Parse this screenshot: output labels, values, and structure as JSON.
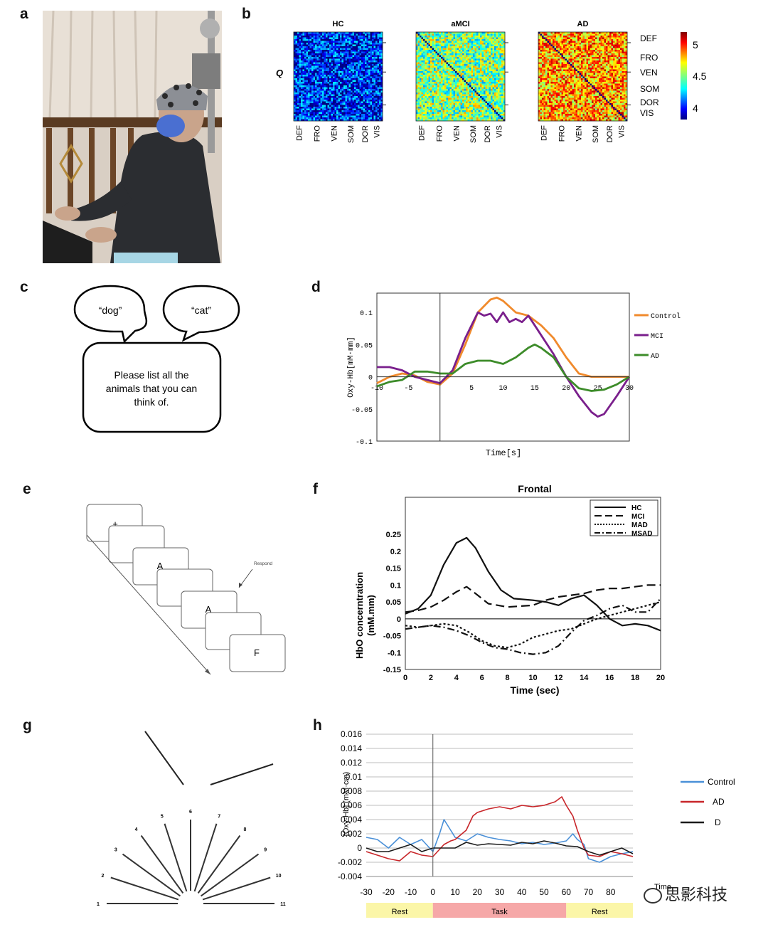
{
  "panels": {
    "a": "a",
    "b": "b",
    "c": "c",
    "d": "d",
    "e": "e",
    "f": "f",
    "g": "g",
    "h": "h"
  },
  "panel_b": {
    "row_label": "Q",
    "matrices": [
      "HC",
      "aMCI",
      "AD"
    ],
    "networks": [
      "DEF",
      "FRO",
      "VEN",
      "SOM",
      "DOR",
      "VIS"
    ],
    "colorbar_ticks": [
      "5",
      "4.5",
      "4"
    ]
  },
  "panel_c": {
    "bubble_left": "“dog”",
    "bubble_right": "“cat”",
    "prompt_lines": [
      "Please list all the",
      "animals that you can",
      "think of."
    ]
  },
  "panel_e": {
    "cards": [
      "+",
      "",
      "A",
      "",
      "A",
      "",
      "F"
    ],
    "respond_label": "Respond"
  },
  "panel_g": {
    "line_numbers": [
      "1",
      "2",
      "3",
      "4",
      "5",
      "6",
      "7",
      "8",
      "9",
      "10",
      "11"
    ]
  },
  "panel_h_timeline": {
    "segments": [
      "Rest",
      "Task",
      "Rest"
    ],
    "colors": {
      "rest": "#fbf6a8",
      "task": "#f6a8a8"
    }
  },
  "watermark": "思影科技",
  "chart_data": [
    {
      "panel": "d",
      "type": "line",
      "title": "",
      "xlabel": "Time[s]",
      "ylabel": "Oxy-Hb[mM·mm]",
      "xlim": [
        -10,
        30
      ],
      "ylim": [
        -0.1,
        0.13
      ],
      "xticks": [
        "-10",
        "-5",
        "5",
        "10",
        "15",
        "20",
        "25",
        "30"
      ],
      "yticks": [
        "0.1",
        "0.05",
        "0",
        "-0.05",
        "-0.1"
      ],
      "legend_position": "right",
      "series": [
        {
          "name": "Control",
          "color": "#f08a2c",
          "x": [
            -10,
            -8,
            -6,
            -4,
            -2,
            0,
            2,
            4,
            6,
            8,
            9,
            10,
            12,
            14,
            16,
            18,
            20,
            22,
            24,
            26,
            28,
            30
          ],
          "y": [
            -0.01,
            0.0,
            0.005,
            0.002,
            -0.008,
            -0.012,
            0.005,
            0.05,
            0.1,
            0.12,
            0.123,
            0.118,
            0.1,
            0.095,
            0.08,
            0.06,
            0.03,
            0.005,
            0.0,
            0.0,
            0.0,
            0.0
          ]
        },
        {
          "name": "MCI",
          "color": "#7a1f8c",
          "x": [
            -10,
            -8,
            -6,
            -4,
            -2,
            0,
            2,
            4,
            6,
            7,
            8,
            9,
            10,
            11,
            12,
            13,
            14,
            15,
            16,
            18,
            20,
            22,
            24,
            25,
            26,
            28,
            30
          ],
          "y": [
            0.015,
            0.015,
            0.01,
            0.0,
            -0.005,
            -0.01,
            0.01,
            0.06,
            0.1,
            0.095,
            0.098,
            0.085,
            0.1,
            0.085,
            0.09,
            0.085,
            0.095,
            0.08,
            0.065,
            0.035,
            0.0,
            -0.03,
            -0.055,
            -0.062,
            -0.058,
            -0.03,
            0.0
          ]
        },
        {
          "name": "AD",
          "color": "#3d8c2a",
          "x": [
            -10,
            -8,
            -6,
            -4,
            -2,
            0,
            2,
            4,
            6,
            8,
            10,
            12,
            14,
            15,
            16,
            18,
            20,
            22,
            24,
            26,
            28,
            30
          ],
          "y": [
            -0.015,
            -0.008,
            -0.005,
            0.008,
            0.008,
            0.005,
            0.005,
            0.02,
            0.025,
            0.025,
            0.02,
            0.03,
            0.045,
            0.05,
            0.045,
            0.03,
            0.0,
            -0.018,
            -0.022,
            -0.02,
            -0.012,
            0.0
          ]
        }
      ]
    },
    {
      "panel": "f",
      "type": "line",
      "title": "Frontal",
      "xlabel": "Time (sec)",
      "ylabel": "HbO concerntration (mM.mm)",
      "xlim": [
        0,
        20
      ],
      "ylim": [
        -0.15,
        0.36
      ],
      "xticks": [
        "0",
        "2",
        "4",
        "6",
        "8",
        "10",
        "12",
        "14",
        "16",
        "18",
        "20"
      ],
      "yticks": [
        "0.25",
        "0.2",
        "0.15",
        "0.1",
        "0.05",
        "0",
        "-0.05",
        "-0.1",
        "-0.15"
      ],
      "legend_position": "top-right",
      "series": [
        {
          "name": "HC",
          "style": "solid",
          "x": [
            0,
            1,
            2,
            3,
            4,
            4.8,
            5.5,
            6.5,
            7.5,
            8.5,
            10,
            11,
            12,
            13,
            14,
            15,
            16,
            17,
            18,
            19,
            20
          ],
          "y": [
            0.015,
            0.03,
            0.07,
            0.16,
            0.225,
            0.24,
            0.21,
            0.14,
            0.085,
            0.06,
            0.055,
            0.05,
            0.04,
            0.06,
            0.07,
            0.04,
            0.0,
            -0.02,
            -0.015,
            -0.02,
            -0.035
          ]
        },
        {
          "name": "MCI",
          "style": "dashed",
          "x": [
            0,
            1,
            2,
            3,
            4,
            4.8,
            5.5,
            6.5,
            8,
            10,
            11,
            12,
            13,
            14,
            15,
            16,
            17,
            18,
            19,
            20
          ],
          "y": [
            0.02,
            0.025,
            0.035,
            0.055,
            0.08,
            0.095,
            0.075,
            0.045,
            0.035,
            0.04,
            0.055,
            0.065,
            0.07,
            0.075,
            0.085,
            0.09,
            0.09,
            0.095,
            0.1,
            0.1
          ]
        },
        {
          "name": "MAD",
          "style": "dotted",
          "x": [
            0,
            1,
            2,
            3,
            4,
            5,
            6,
            7,
            8,
            9,
            10,
            11,
            12,
            13,
            14,
            15,
            16,
            17,
            18,
            19,
            20
          ],
          "y": [
            -0.02,
            -0.025,
            -0.02,
            -0.015,
            -0.02,
            -0.04,
            -0.065,
            -0.08,
            -0.085,
            -0.075,
            -0.055,
            -0.045,
            -0.035,
            -0.03,
            -0.015,
            0.0,
            0.01,
            0.02,
            0.03,
            0.04,
            0.05
          ]
        },
        {
          "name": "MSAD",
          "style": "dashdot",
          "x": [
            0,
            1,
            2,
            3,
            4,
            5,
            6,
            7,
            8,
            9,
            10,
            11,
            12,
            13,
            14,
            15,
            16,
            17,
            18,
            19,
            20
          ],
          "y": [
            -0.03,
            -0.025,
            -0.02,
            -0.025,
            -0.035,
            -0.05,
            -0.07,
            -0.085,
            -0.09,
            -0.1,
            -0.105,
            -0.1,
            -0.08,
            -0.04,
            -0.005,
            0.01,
            0.03,
            0.04,
            0.02,
            0.02,
            0.06
          ]
        }
      ]
    },
    {
      "panel": "h",
      "type": "line",
      "title": "",
      "xlabel": "Time",
      "ylabel": "[Oxy-Hb] (mM·cm)",
      "xlim": [
        -30,
        90
      ],
      "ylim": [
        -0.004,
        0.016
      ],
      "xticks": [
        "-30",
        "-20",
        "-10",
        "0",
        "10",
        "20",
        "30",
        "40",
        "50",
        "60",
        "70",
        "80"
      ],
      "yticks": [
        "0.016",
        "0.014",
        "0.012",
        "0.01",
        "0.008",
        "0.006",
        "0.004",
        "0.002",
        "0",
        "-0.002",
        "-0.004"
      ],
      "legend_position": "right",
      "grid": true,
      "series": [
        {
          "name": "Control",
          "color": "#4a90d8",
          "x": [
            -30,
            -25,
            -20,
            -15,
            -10,
            -5,
            0,
            3,
            5,
            8,
            10,
            15,
            20,
            25,
            30,
            35,
            40,
            45,
            50,
            55,
            60,
            63,
            65,
            68,
            70,
            75,
            80,
            85,
            90
          ],
          "y": [
            0.0015,
            0.0012,
            0.0,
            0.0015,
            0.0005,
            0.0012,
            -0.0005,
            0.002,
            0.004,
            0.0025,
            0.0015,
            0.001,
            0.002,
            0.0015,
            0.0012,
            0.001,
            0.0006,
            0.0008,
            0.0005,
            0.0007,
            0.001,
            0.002,
            0.0012,
            0.0005,
            -0.0015,
            -0.002,
            -0.0012,
            -0.0008,
            -0.0005
          ]
        },
        {
          "name": "AD",
          "color": "#c8262a",
          "x": [
            -30,
            -25,
            -20,
            -15,
            -10,
            -5,
            0,
            5,
            8,
            10,
            15,
            18,
            20,
            25,
            30,
            35,
            40,
            45,
            50,
            55,
            58,
            60,
            63,
            65,
            68,
            70,
            75,
            80,
            85,
            90
          ],
          "y": [
            -0.0005,
            -0.001,
            -0.0015,
            -0.0018,
            -0.0005,
            -0.001,
            -0.0012,
            0.0005,
            0.001,
            0.0012,
            0.0025,
            0.0045,
            0.005,
            0.0055,
            0.0058,
            0.0055,
            0.006,
            0.0058,
            0.006,
            0.0065,
            0.0072,
            0.006,
            0.0045,
            0.0025,
            0.0,
            -0.001,
            -0.0012,
            -0.0005,
            -0.0008,
            -0.0012
          ]
        },
        {
          "name": "D",
          "color": "#1a1a1a",
          "x": [
            -30,
            -25,
            -20,
            -15,
            -10,
            -5,
            0,
            5,
            10,
            15,
            20,
            25,
            30,
            35,
            40,
            45,
            50,
            55,
            60,
            65,
            70,
            75,
            80,
            85,
            90
          ],
          "y": [
            0.0,
            -0.0005,
            -0.0005,
            0.0,
            0.0005,
            -0.0005,
            0.0,
            0.0,
            0.0,
            0.0008,
            0.0004,
            0.0006,
            0.0005,
            0.0004,
            0.0008,
            0.0006,
            0.001,
            0.0007,
            0.0003,
            0.0002,
            -0.0005,
            -0.001,
            -0.0005,
            0.0,
            -0.0008
          ]
        }
      ]
    }
  ]
}
